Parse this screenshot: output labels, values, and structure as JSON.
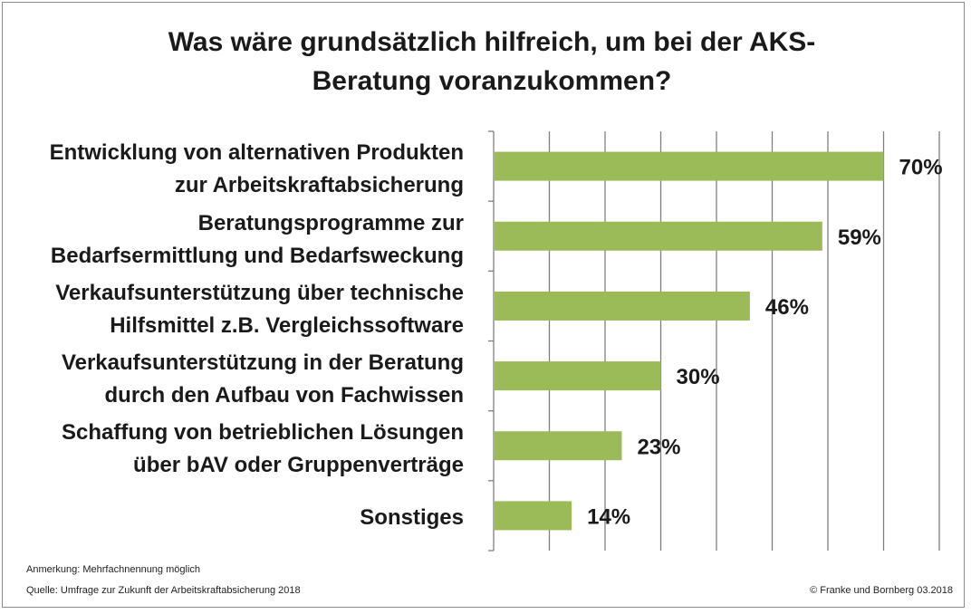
{
  "chart_data": {
    "type": "bar",
    "orientation": "horizontal",
    "title": "Was wäre grundsätzlich hilfreich, um bei der AKS-Beratung voranzukommen?",
    "title_lines": [
      "Was wäre grundsätzlich hilfreich, um bei der AKS-",
      "Beratung voranzukommen?"
    ],
    "categories": [
      [
        "Entwicklung von alternativen Produkten",
        "zur Arbeitskraftabsicherung"
      ],
      [
        "Beratungsprogramme zur",
        "Bedarfsermittlung und Bedarfsweckung"
      ],
      [
        "Verkaufsunterstützung über technische",
        "Hilfsmittel z.B. Vergleichssoftware"
      ],
      [
        "Verkaufsunterstützung in der Beratung",
        "durch den Aufbau von Fachwissen"
      ],
      [
        "Schaffung von betrieblichen Lösungen",
        "über bAV oder Gruppenverträge"
      ],
      [
        "Sonstiges"
      ]
    ],
    "values": [
      70,
      59,
      46,
      30,
      23,
      14
    ],
    "value_labels": [
      "70%",
      "59%",
      "46%",
      "30%",
      "23%",
      "14%"
    ],
    "xlim": [
      0,
      80
    ],
    "grid": true,
    "bar_color": "#9bbb59"
  },
  "footer": {
    "note": "Anmerkung: Mehrfachnennung möglich",
    "source": "Quelle: Umfrage zur Zukunft der Arbeitskraftabsicherung 2018",
    "copyright": "© Franke und Bornberg 03.2018"
  },
  "colors": {
    "bar": "#9bbb59",
    "grid": "#7f7f7f",
    "text": "#1a1a1a"
  }
}
